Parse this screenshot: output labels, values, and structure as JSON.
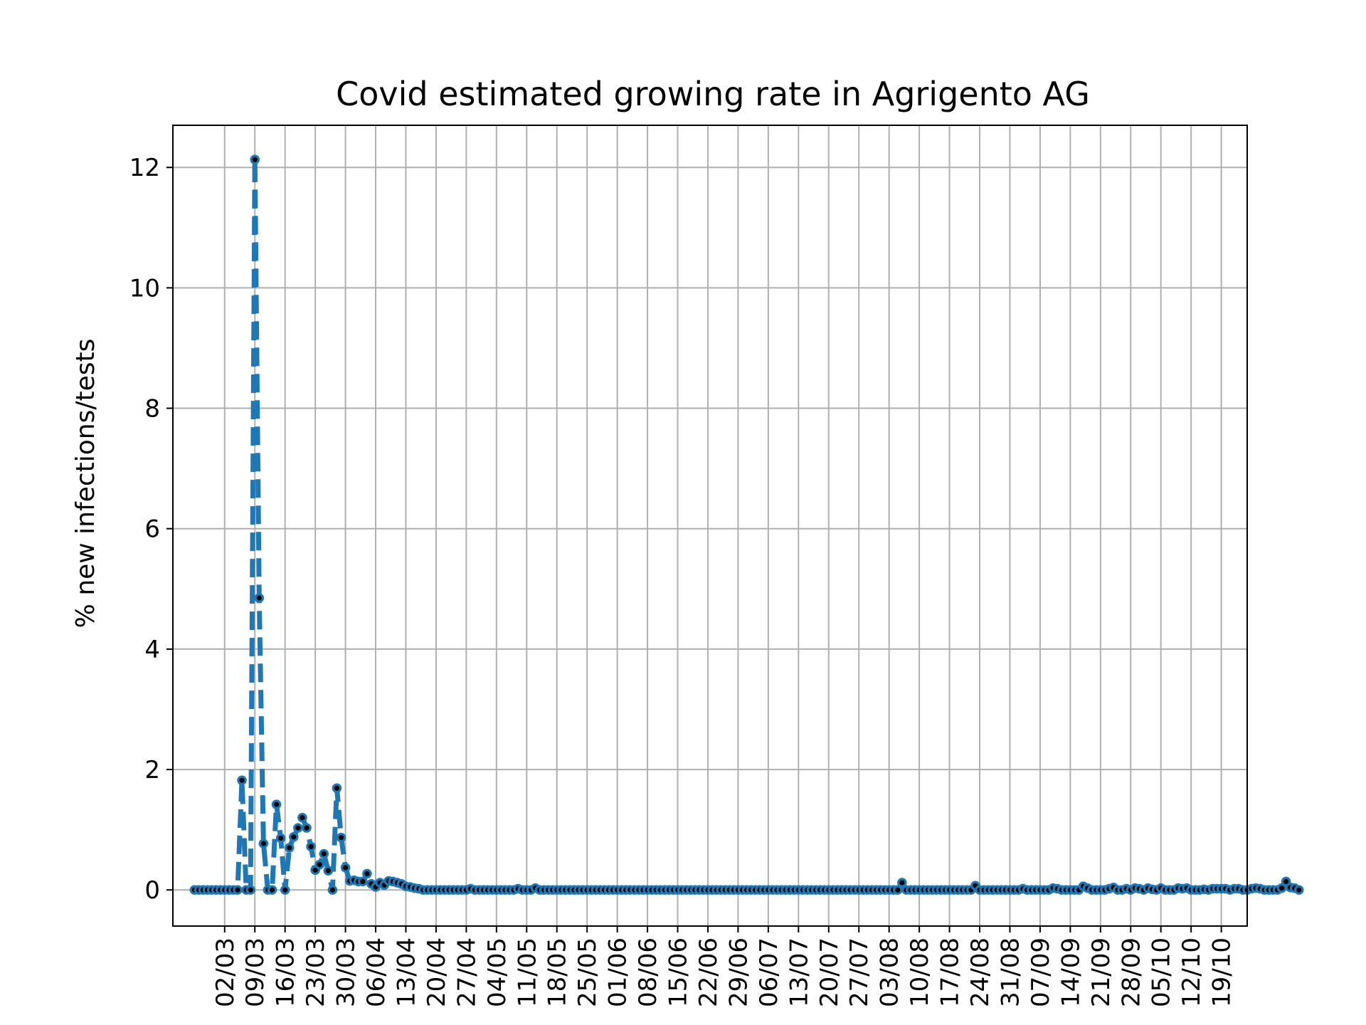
{
  "chart_data": {
    "type": "line",
    "title": "Covid estimated growing rate in Agrigento AG",
    "xlabel": "",
    "ylabel": "% new infections/tests",
    "ylim": [
      -0.6,
      12.7
    ],
    "xlim": [
      "2020-02-19",
      "2020-10-25"
    ],
    "grid": true,
    "line_style": "dashed with circle markers",
    "color": "#1f77b4",
    "yticks": [
      0,
      2,
      4,
      6,
      8,
      10,
      12
    ],
    "xtick_dates": [
      "2020-03-02",
      "2020-03-09",
      "2020-03-16",
      "2020-03-23",
      "2020-03-30",
      "2020-04-06",
      "2020-04-13",
      "2020-04-20",
      "2020-04-27",
      "2020-05-04",
      "2020-05-11",
      "2020-05-18",
      "2020-05-25",
      "2020-06-01",
      "2020-06-08",
      "2020-06-15",
      "2020-06-22",
      "2020-06-29",
      "2020-07-06",
      "2020-07-13",
      "2020-07-20",
      "2020-07-27",
      "2020-08-03",
      "2020-08-10",
      "2020-08-17",
      "2020-08-24",
      "2020-08-31",
      "2020-09-07",
      "2020-09-14",
      "2020-09-21",
      "2020-09-28",
      "2020-10-05",
      "2020-10-12",
      "2020-10-19"
    ],
    "xtick_labels": [
      "02/03",
      "09/03",
      "16/03",
      "23/03",
      "30/03",
      "06/04",
      "13/04",
      "20/04",
      "27/04",
      "04/05",
      "11/05",
      "18/05",
      "25/05",
      "01/06",
      "08/06",
      "15/06",
      "22/06",
      "29/06",
      "06/07",
      "13/07",
      "20/07",
      "27/07",
      "03/08",
      "10/08",
      "17/08",
      "24/08",
      "31/08",
      "07/09",
      "14/09",
      "21/09",
      "28/09",
      "05/10",
      "12/10",
      "19/10"
    ],
    "series": [
      {
        "start_date": "2020-02-24",
        "values": [
          0,
          0,
          0,
          0,
          0,
          0,
          0,
          0,
          0,
          0,
          0,
          1.82,
          0,
          0,
          12.13,
          4.85,
          0.77,
          0,
          0,
          1.42,
          0.86,
          0,
          0.7,
          0.88,
          1.03,
          1.2,
          1.03,
          0.72,
          0.33,
          0.42,
          0.6,
          0.32,
          0,
          1.69,
          0.87,
          0.37,
          0.15,
          0.16,
          0.14,
          0.14,
          0.27,
          0.1,
          0.05,
          0.12,
          0.08,
          0.15,
          0.14,
          0.12,
          0.1,
          0.06,
          0.05,
          0.03,
          0.02,
          0,
          0,
          0,
          0,
          0,
          0,
          0,
          0,
          0,
          0,
          0,
          0.02,
          0,
          0,
          0,
          0,
          0,
          0,
          0,
          0,
          0,
          0,
          0.02,
          0,
          0,
          0,
          0.03,
          0,
          0,
          0,
          0,
          0,
          0,
          0,
          0,
          0,
          0,
          0,
          0,
          0,
          0,
          0,
          0,
          0,
          0,
          0,
          0,
          0,
          0,
          0,
          0,
          0,
          0,
          0,
          0,
          0,
          0,
          0,
          0,
          0,
          0,
          0,
          0,
          0,
          0,
          0,
          0,
          0,
          0,
          0,
          0,
          0,
          0,
          0,
          0,
          0,
          0,
          0,
          0,
          0,
          0,
          0,
          0,
          0,
          0,
          0,
          0,
          0,
          0,
          0,
          0,
          0,
          0,
          0,
          0,
          0,
          0,
          0,
          0,
          0,
          0,
          0,
          0,
          0,
          0,
          0,
          0,
          0,
          0,
          0,
          0,
          0.12,
          0,
          0,
          0,
          0,
          0,
          0,
          0,
          0,
          0,
          0,
          0,
          0,
          0,
          0,
          0,
          0,
          0.07,
          0,
          0,
          0,
          0,
          0,
          0,
          0,
          0,
          0,
          0,
          0.02,
          0,
          0,
          0,
          0,
          0,
          0,
          0.03,
          0.02,
          0,
          0,
          0,
          0,
          0,
          0.06,
          0.03,
          0,
          0,
          0,
          0,
          0.02,
          0.04,
          0,
          0,
          0.02,
          0,
          0.03,
          0.02,
          0,
          0.03,
          0.01,
          0,
          0.03,
          0,
          0,
          0,
          0.03,
          0.02,
          0.03,
          0,
          0,
          0,
          0.01,
          0,
          0.02,
          0.02,
          0.02,
          0.02,
          0,
          0.02,
          0.02,
          0,
          0,
          0.02,
          0.03,
          0.02,
          0,
          0,
          0,
          0,
          0.03,
          0.14,
          0.04,
          0.03,
          0
        ]
      }
    ]
  }
}
